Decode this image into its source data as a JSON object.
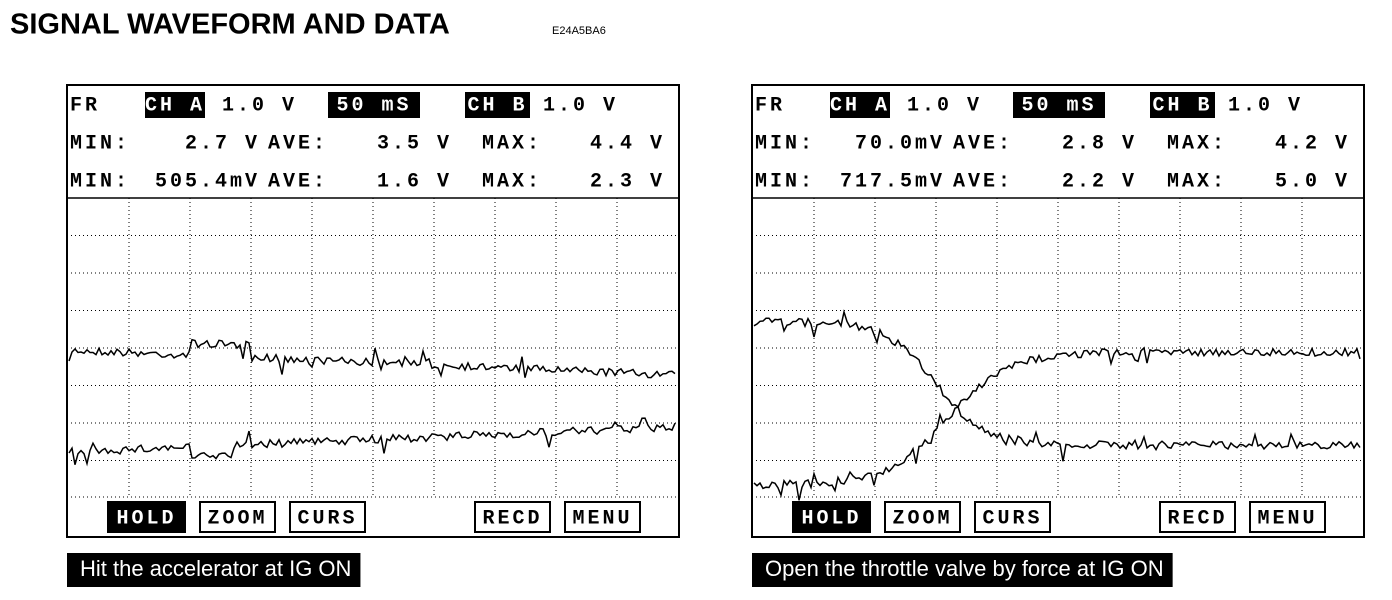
{
  "header": {
    "title": "SIGNAL WAVEFORM AND DATA",
    "code": "E24A5BA6"
  },
  "panels": [
    {
      "header": [
        "FR",
        "CH A",
        "1.0 V",
        "50 mS",
        "CH B",
        "1.0 V"
      ],
      "rows": [
        [
          "MIN:",
          "2.7 V",
          "AVE:",
          "3.5 V",
          "MAX:",
          "4.4 V"
        ],
        [
          "MIN:",
          "505.4mV",
          "AVE:",
          "1.6 V",
          "MAX:",
          "2.3 V"
        ]
      ],
      "buttons": [
        "HOLD",
        "ZOOM",
        "CURS",
        "RECD",
        "MENU"
      ],
      "caption": "Hit the accelerator at IG ON"
    },
    {
      "header": [
        "FR",
        "CH A",
        "1.0 V",
        "50 mS",
        "CH B",
        "1.0 V"
      ],
      "rows": [
        [
          "MIN:",
          "70.0mV",
          "AVE:",
          "2.8 V",
          "MAX:",
          "4.2 V"
        ],
        [
          "MIN:",
          "717.5mV",
          "AVE:",
          "2.2 V",
          "MAX:",
          "5.0 V"
        ]
      ],
      "buttons": [
        "HOLD",
        "ZOOM",
        "CURS",
        "RECD",
        "MENU"
      ],
      "caption": "Open the throttle valve by force at IG ON"
    }
  ]
}
